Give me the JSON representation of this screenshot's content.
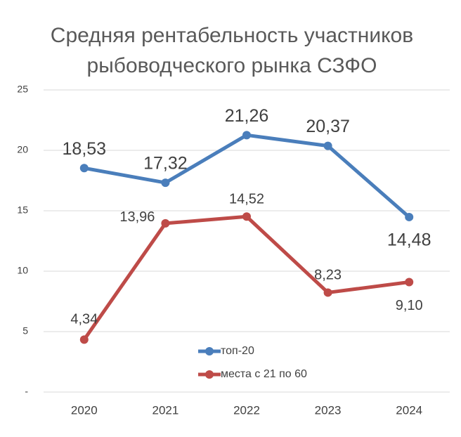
{
  "chart_data": {
    "type": "line",
    "title": "Средняя рентабельность участников рыбоводческого рынка СЗФО",
    "categories": [
      "2020",
      "2021",
      "2022",
      "2023",
      "2024"
    ],
    "series": [
      {
        "name": "топ-20",
        "color": "#4a7ebb",
        "values": [
          18.53,
          17.32,
          21.26,
          20.37,
          14.48
        ],
        "value_labels": [
          "18,53",
          "17,32",
          "21,26",
          "20,37",
          "14,48"
        ]
      },
      {
        "name": "места с 21 по 60",
        "color": "#be4b48",
        "values": [
          4.34,
          13.96,
          14.52,
          8.23,
          9.1
        ],
        "value_labels": [
          "4,34",
          "13,96",
          "14,52",
          "8,23",
          "9,10"
        ]
      }
    ],
    "ylim": [
      0,
      25
    ],
    "yticks": [
      {
        "value": 0,
        "label": "-"
      },
      5,
      10,
      15,
      20,
      25
    ],
    "grid": true
  }
}
